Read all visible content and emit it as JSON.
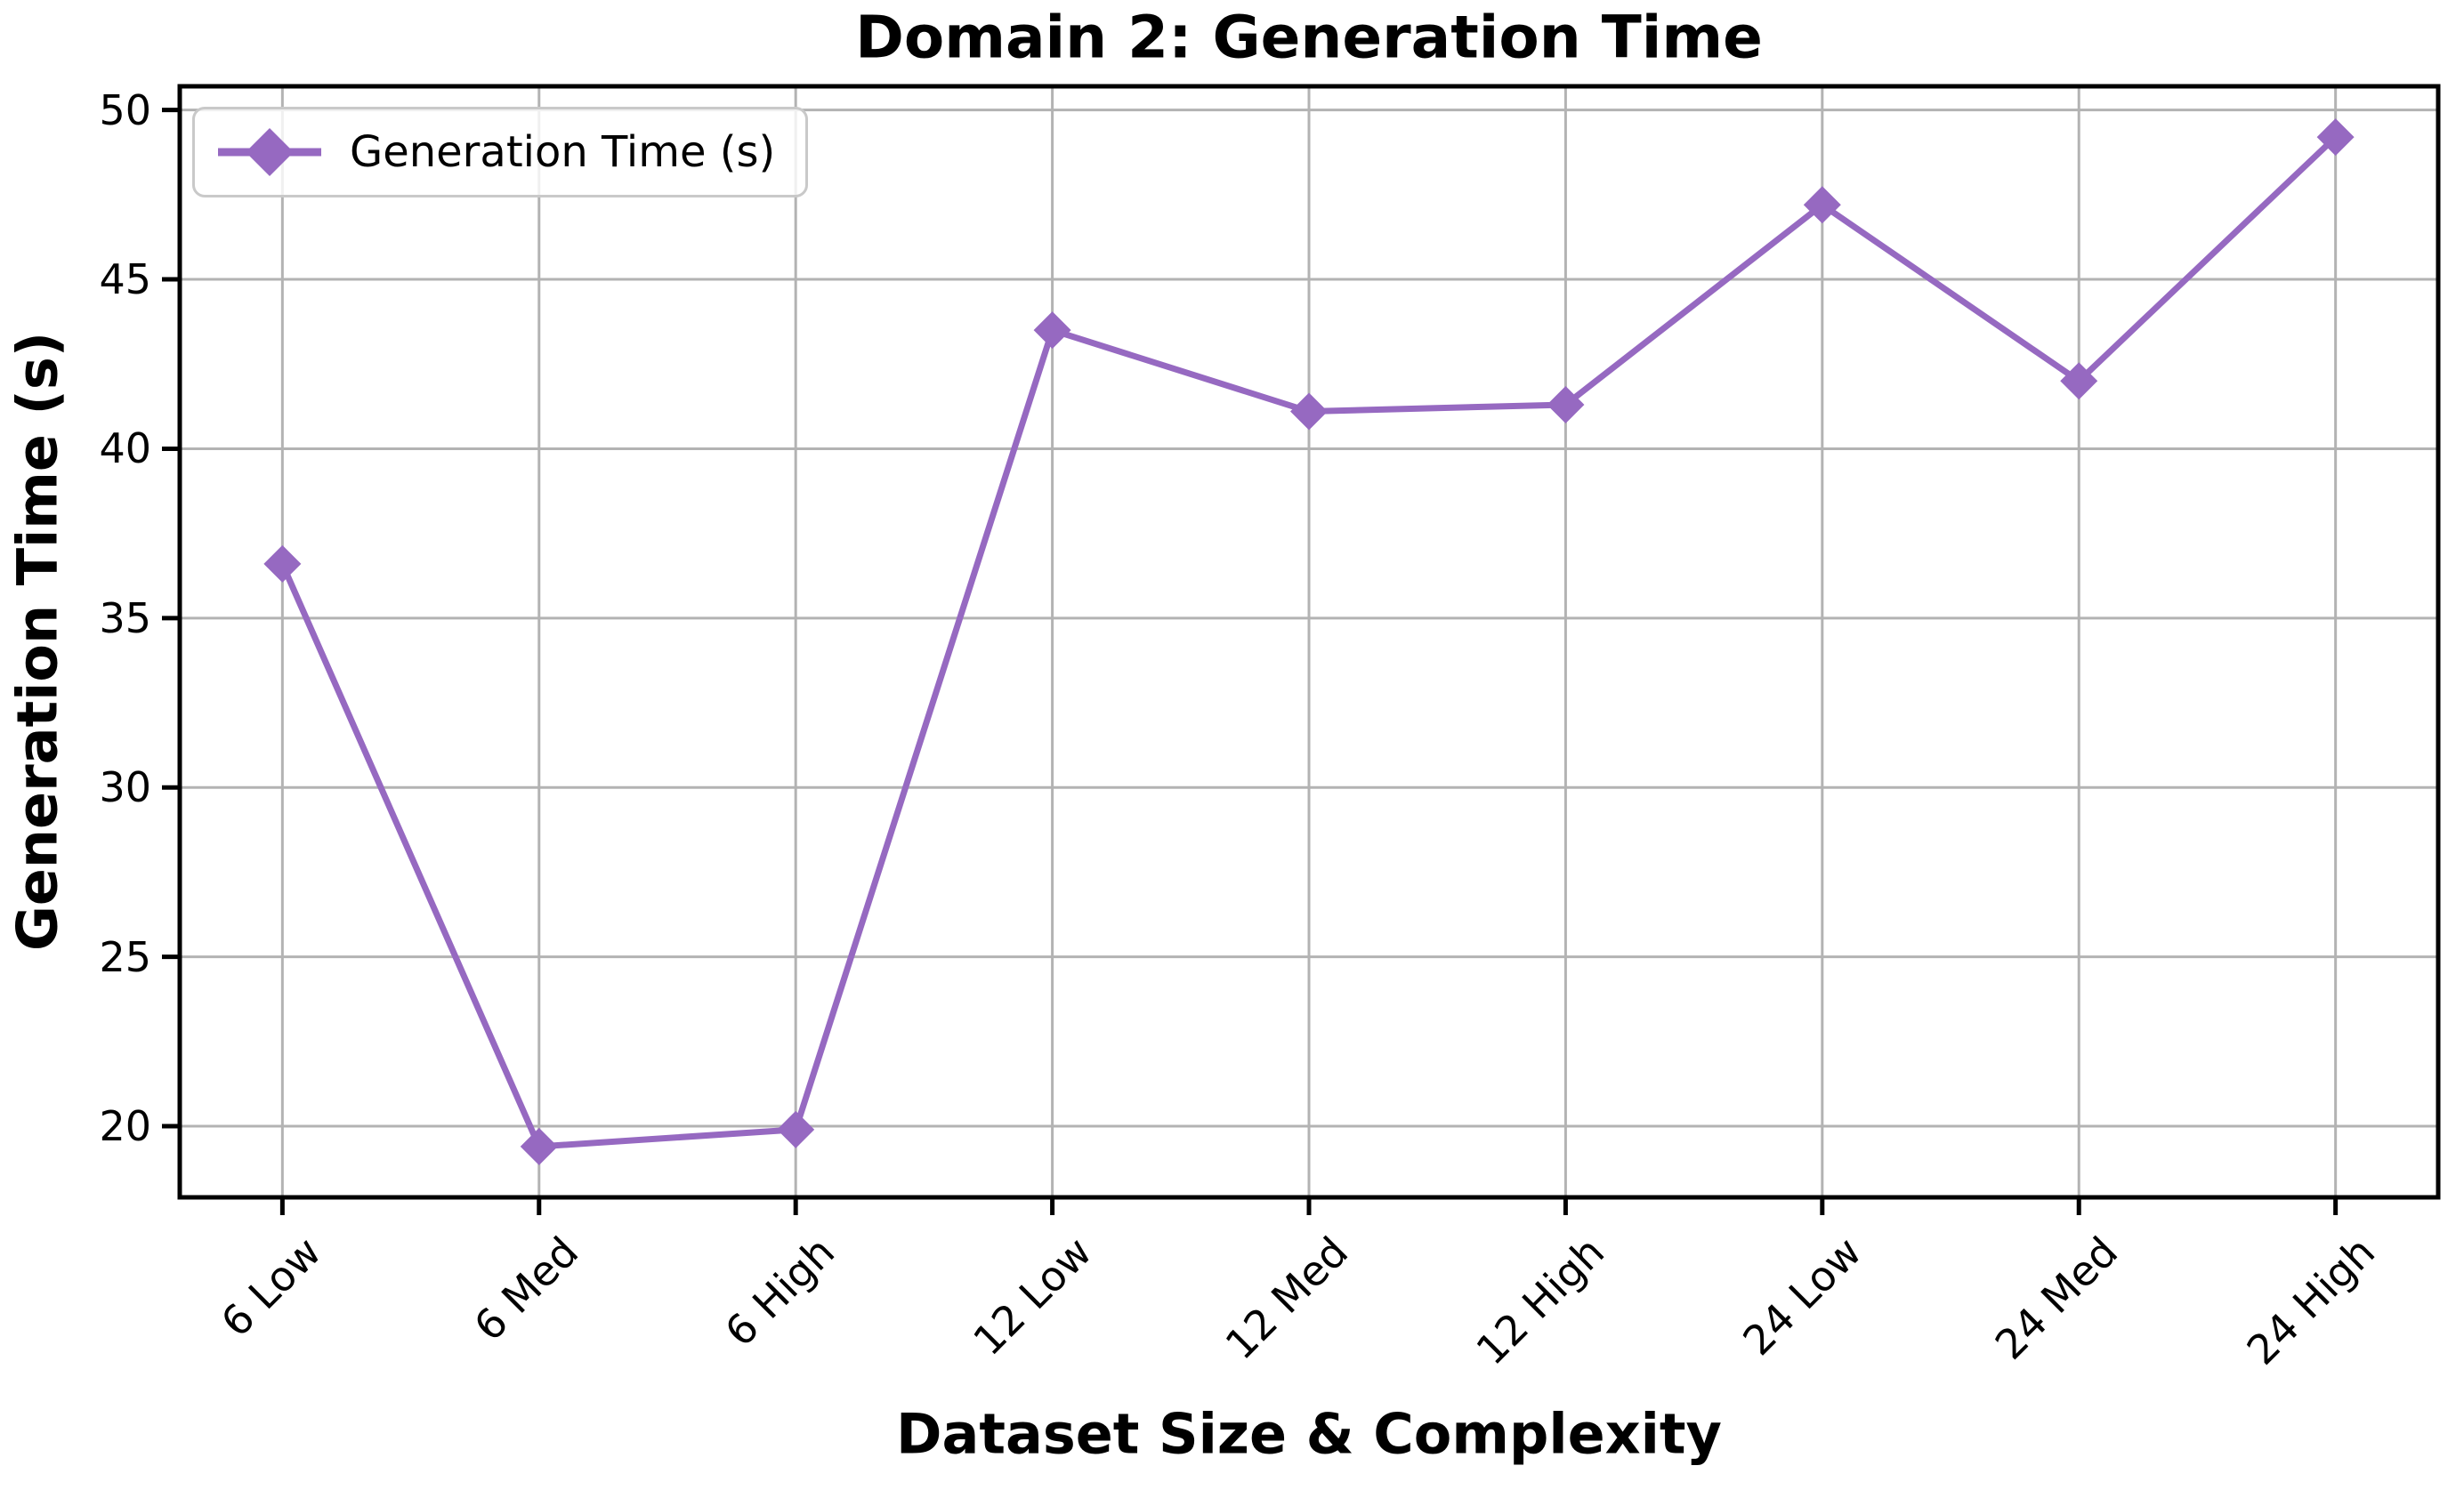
{
  "chart_data": {
    "type": "line",
    "title": "Domain 2: Generation Time",
    "xlabel": "Dataset Size & Complexity",
    "ylabel": "Generation Time (s)",
    "categories": [
      "6 Low",
      "6 Med",
      "6 High",
      "12 Low",
      "12 Med",
      "12 High",
      "24 Low",
      "24 Med",
      "24 High"
    ],
    "series": [
      {
        "name": "Generation Time (s)",
        "marker": "diamond",
        "values": [
          36.6,
          19.4,
          19.9,
          43.5,
          41.1,
          41.3,
          47.2,
          42.0,
          49.2
        ]
      }
    ],
    "yticks": [
      20,
      25,
      30,
      35,
      40,
      45,
      50
    ],
    "ylim": [
      17.9,
      50.7
    ],
    "grid": true,
    "legend": {
      "entries": [
        "Generation Time (s)"
      ],
      "position": "upper-left"
    },
    "colors": {
      "line": "#9669c1",
      "grid": "#b3b3b3",
      "axis": "#000000",
      "text": "#000000",
      "legend_border": "#c9c9c9",
      "background": "#ffffff"
    }
  }
}
